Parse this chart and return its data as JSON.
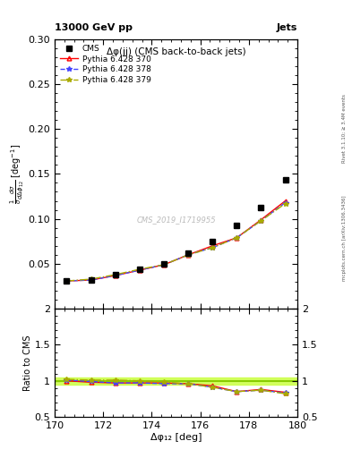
{
  "title_top": "13000 GeV pp",
  "title_right": "Jets",
  "plot_title": "Δφ(jj) (CMS back-to-back jets)",
  "xlabel": "Δφ₁₂ [deg]",
  "ylabel_ratio": "Ratio to CMS",
  "watermark": "CMS_2019_I1719955",
  "right_label": "mcplots.cern.ch [arXiv:1306.3436]",
  "rivet_label": "Rivet 3.1.10; ≥ 3.4M events",
  "x_data": [
    170.5,
    171.5,
    172.5,
    173.5,
    174.5,
    175.5,
    176.5,
    177.5,
    178.5,
    179.5
  ],
  "cms_y": [
    0.031,
    0.032,
    0.038,
    0.044,
    0.05,
    0.062,
    0.075,
    0.093,
    0.113,
    0.143
  ],
  "pythia370_y": [
    0.031,
    0.032,
    0.037,
    0.043,
    0.049,
    0.06,
    0.07,
    0.079,
    0.099,
    0.12
  ],
  "pythia378_y": [
    0.031,
    0.032,
    0.037,
    0.043,
    0.049,
    0.06,
    0.068,
    0.079,
    0.098,
    0.118
  ],
  "pythia379_y": [
    0.031,
    0.033,
    0.038,
    0.044,
    0.049,
    0.06,
    0.068,
    0.079,
    0.098,
    0.117
  ],
  "ratio370_y": [
    1.0,
    0.98,
    0.97,
    0.97,
    0.97,
    0.96,
    0.93,
    0.85,
    0.88,
    0.84
  ],
  "ratio378_y": [
    1.01,
    0.99,
    0.97,
    0.97,
    0.96,
    0.96,
    0.91,
    0.85,
    0.87,
    0.83
  ],
  "ratio379_y": [
    1.02,
    1.01,
    1.01,
    1.0,
    0.98,
    0.96,
    0.91,
    0.85,
    0.87,
    0.82
  ],
  "xlim": [
    170,
    180
  ],
  "ylim_main": [
    0.0,
    0.3
  ],
  "ylim_ratio": [
    0.5,
    2.0
  ],
  "color_cms": "#000000",
  "color_370": "#ff0000",
  "color_378": "#4444ff",
  "color_379": "#aaaa00",
  "yticks_main": [
    0.05,
    0.1,
    0.15,
    0.2,
    0.25,
    0.3
  ],
  "yticks_ratio": [
    0.5,
    1.0,
    1.5,
    2.0
  ]
}
